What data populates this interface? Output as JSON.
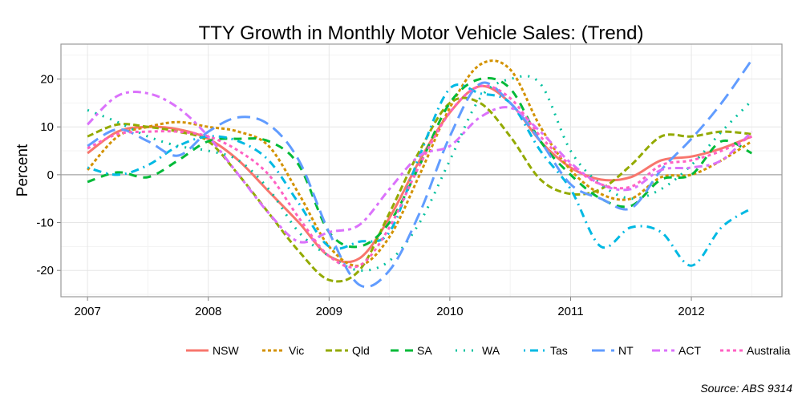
{
  "chart_data": {
    "type": "line",
    "title": "TTY Growth in Monthly Motor Vehicle Sales:  (Trend)",
    "xlabel": "",
    "ylabel": "Percent",
    "source": "Source: ABS 9314",
    "xlim": [
      2006.78,
      2012.75
    ],
    "ylim": [
      -25.5,
      27.3
    ],
    "x_ticks": [
      2007,
      2008,
      2009,
      2010,
      2011,
      2012
    ],
    "y_ticks": [
      -20,
      -10,
      0,
      10,
      20
    ],
    "grid": true,
    "legend_position": "bottom",
    "x": [
      2007,
      2007.25,
      2007.5,
      2007.75,
      2008,
      2008.25,
      2008.5,
      2008.75,
      2009,
      2009.25,
      2009.5,
      2009.75,
      2010,
      2010.25,
      2010.5,
      2010.75,
      2011,
      2011.25,
      2011.5,
      2011.75,
      2012,
      2012.25,
      2012.5
    ],
    "series": [
      {
        "name": "NSW",
        "color": "#F8766D",
        "dash": "",
        "values": [
          4.5,
          9,
          10,
          9.5,
          7.5,
          3,
          -3.5,
          -10,
          -17,
          -17.5,
          -9,
          3,
          13,
          18.5,
          15,
          7,
          1.5,
          -1,
          -0.5,
          3,
          3.8,
          5.5,
          8
        ]
      },
      {
        "name": "Vic",
        "color": "#D39200",
        "dash": "4 3",
        "values": [
          1,
          8,
          10,
          11,
          10,
          9,
          6,
          -4,
          -15,
          -19,
          -13,
          0,
          14,
          23,
          22,
          10,
          1,
          -4,
          -5,
          -0.5,
          0,
          3,
          7
        ]
      },
      {
        "name": "Qld",
        "color": "#93AA00",
        "dash": "8 4",
        "values": [
          8,
          10.5,
          10,
          9,
          7,
          0,
          -8,
          -16,
          -22,
          -20,
          -8,
          5,
          15,
          15,
          8,
          -1,
          -4,
          -3,
          2,
          8,
          8,
          9,
          8.5
        ]
      },
      {
        "name": "SA",
        "color": "#00BA38",
        "dash": "10 8",
        "values": [
          -1.5,
          0.5,
          -0.5,
          3,
          7,
          7.5,
          7,
          2,
          -12,
          -15,
          -10,
          2,
          15,
          20,
          18,
          7,
          0,
          -5,
          -6.5,
          -1,
          0,
          7,
          4.5
        ]
      },
      {
        "name": "WA",
        "color": "#00C19F",
        "dash": "2 8",
        "values": [
          13.5,
          11,
          8,
          6,
          5,
          3,
          -3,
          -12,
          -17,
          -20,
          -18,
          -10,
          3,
          16,
          20,
          19,
          5,
          -2,
          -5,
          -3,
          2,
          9,
          15.5
        ]
      },
      {
        "name": "Tas",
        "color": "#00B9E3",
        "dash": "2 6 10 6",
        "values": [
          1.5,
          0,
          2,
          6,
          8,
          7,
          3,
          -6,
          -15,
          -14,
          -12,
          4,
          18,
          17,
          15,
          5,
          -3,
          -15,
          -11,
          -12,
          -19,
          -11,
          -7
        ]
      },
      {
        "name": "NT",
        "color": "#619CFF",
        "dash": "16 8",
        "values": [
          6,
          9.5,
          7,
          4,
          9,
          12,
          10.5,
          3,
          -12,
          -23,
          -20,
          -8,
          8,
          19,
          15,
          7,
          -2,
          -5,
          -7,
          1,
          7.5,
          15,
          24
        ]
      },
      {
        "name": "ACT",
        "color": "#DB72FB",
        "dash": "10 5 4 5",
        "values": [
          10.5,
          16.5,
          17,
          14,
          8,
          0,
          -8,
          -14,
          -12,
          -10.5,
          -3,
          4,
          6,
          12,
          14,
          9,
          2.5,
          -2,
          -3,
          1,
          1.5,
          3,
          9
        ]
      },
      {
        "name": "Australia",
        "color": "#FF61C3",
        "dash": "4 4",
        "values": [
          5.5,
          8.5,
          9,
          9,
          8,
          5,
          0,
          -9,
          -17,
          -19,
          -11,
          2,
          13,
          18.5,
          16,
          8,
          2,
          -2,
          -2.5,
          2,
          3,
          5,
          8
        ]
      }
    ]
  }
}
